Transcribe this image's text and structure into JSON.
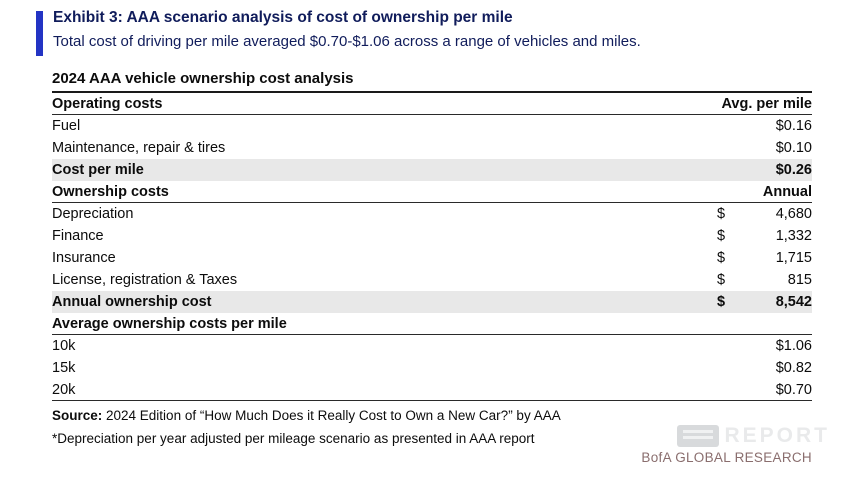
{
  "colors": {
    "accent_bar": "#2334c4",
    "navy": "#101c5b",
    "shade": "#e8e8e8",
    "brand": "#8a6e6e"
  },
  "header": {
    "exhibit_title": "Exhibit 3: AAA scenario analysis of cost of ownership per mile",
    "subtitle": "Total cost of driving per mile averaged $0.70-$1.06 across a range of vehicles and miles."
  },
  "table": {
    "title": "2024 AAA vehicle ownership cost analysis",
    "rows": [
      {
        "label": "Operating costs",
        "value": "Avg. per mile",
        "kind": "header"
      },
      {
        "label": "Fuel",
        "value": "$0.16",
        "kind": "item"
      },
      {
        "label": "Maintenance, repair & tires",
        "value": "$0.10",
        "kind": "item"
      },
      {
        "label": "Cost per mile",
        "value": "$0.26",
        "kind": "total"
      },
      {
        "label": "Ownership costs",
        "value": "Annual",
        "kind": "header"
      },
      {
        "label": "Depreciation",
        "dollar": "$",
        "value": "4,680",
        "kind": "item"
      },
      {
        "label": "Finance",
        "dollar": "$",
        "value": "1,332",
        "kind": "item"
      },
      {
        "label": "Insurance",
        "dollar": "$",
        "value": "1,715",
        "kind": "item"
      },
      {
        "label": "License, registration & Taxes",
        "dollar": "$",
        "value": "815",
        "kind": "item"
      },
      {
        "label": "Annual ownership cost",
        "dollar": "$",
        "value": "8,542",
        "kind": "total"
      },
      {
        "label": "Average ownership costs per mile",
        "value": "",
        "kind": "header"
      },
      {
        "label": "10k",
        "value": "$1.06",
        "kind": "item"
      },
      {
        "label": "15k",
        "value": "$0.82",
        "kind": "item"
      },
      {
        "label": "20k",
        "value": "$0.70",
        "kind": "item"
      }
    ]
  },
  "footer": {
    "source_label": "Source:",
    "source_text": " 2024 Edition of “How Much Does it Really Cost to Own a New Car?” by AAA",
    "footnote": "*Depreciation per year adjusted per mileage scenario as presented in AAA report",
    "brand": "BofA GLOBAL RESEARCH",
    "watermark": "REPORT"
  }
}
